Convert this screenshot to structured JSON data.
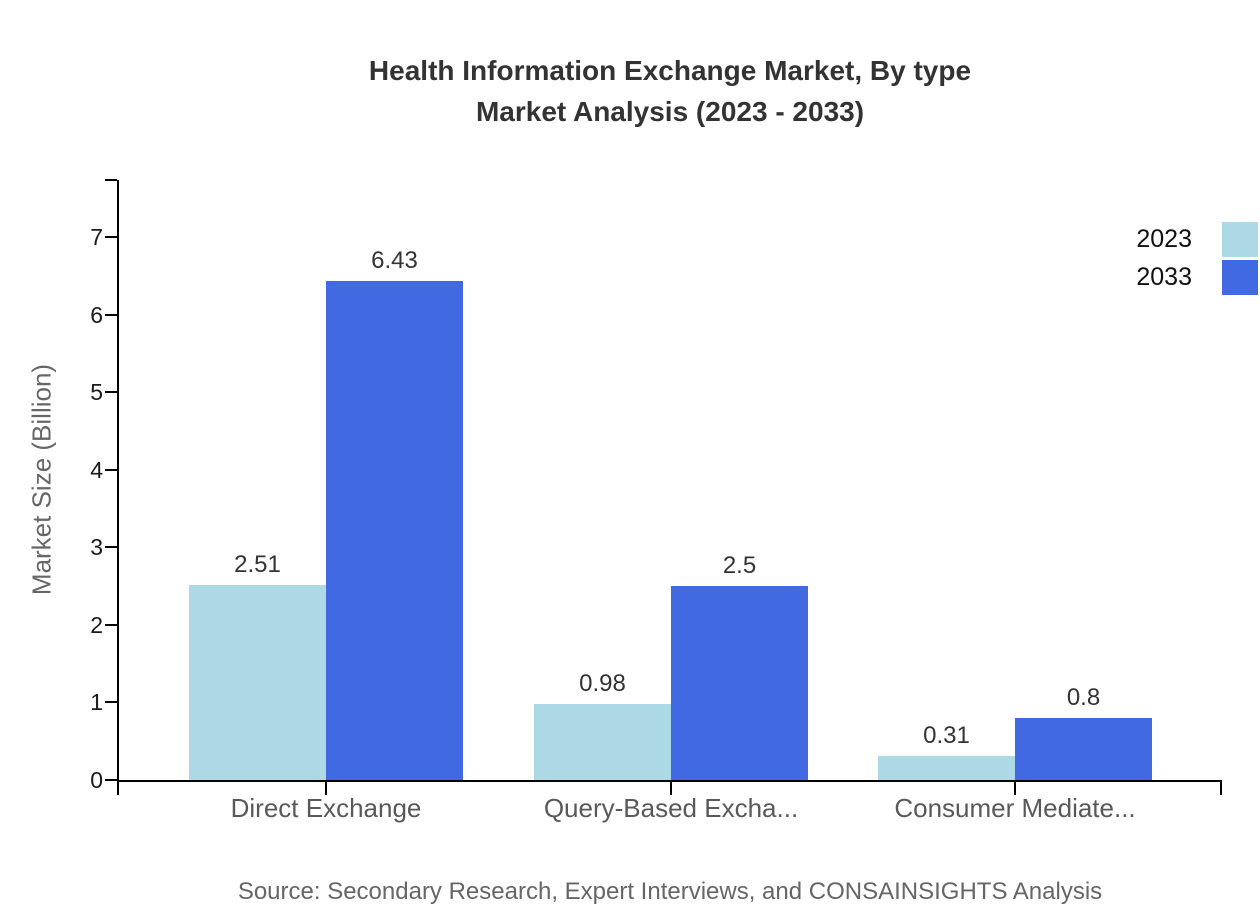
{
  "title": {
    "line1": "Health Information Exchange Market, By type",
    "line2": "Market Analysis (2023 - 2033)"
  },
  "source_note": "Source: Secondary Research, Expert Interviews, and CONSAINSIGHTS Analysis",
  "chart_data": {
    "type": "bar",
    "title": "Health Information Exchange Market, By type Market Analysis (2023 - 2033)",
    "categories": [
      "Direct Exchange",
      "Query-Based Excha...",
      "Consumer Mediate..."
    ],
    "series": [
      {
        "name": "2023",
        "color": "#ADD8E6",
        "values": [
          2.51,
          0.98,
          0.31
        ]
      },
      {
        "name": "2033",
        "color": "#4169E1",
        "values": [
          6.43,
          2.5,
          0.8
        ]
      }
    ],
    "value_labels": [
      [
        "2.51",
        "0.98",
        "0.31"
      ],
      [
        "6.43",
        "2.5",
        "0.8"
      ]
    ],
    "xlabel": "",
    "ylabel": "Market Size (Billion)",
    "ylim": [
      0,
      7
    ],
    "yticks": [
      0,
      1,
      2,
      3,
      4,
      5,
      6,
      7
    ],
    "grid": false,
    "legend_position": "top-right"
  }
}
